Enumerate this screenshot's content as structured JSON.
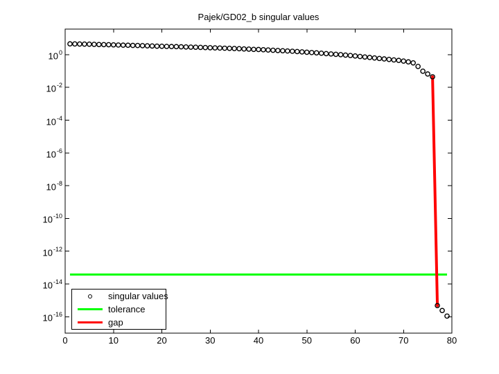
{
  "chart_data": {
    "type": "line",
    "title": "Pajek/GD02_b singular values",
    "xlabel": "",
    "ylabel": "",
    "xlim": [
      0,
      80
    ],
    "ylim": [
      1e-17,
      36.5
    ],
    "y_scale": "log",
    "grid": false,
    "x_ticks": [
      0,
      10,
      20,
      30,
      40,
      50,
      60,
      70,
      80
    ],
    "y_tick_exponents": [
      0,
      -2,
      -4,
      -6,
      -8,
      -10,
      -12,
      -14,
      -16
    ],
    "legend_position": "lower-left",
    "series": [
      {
        "name": "singular values",
        "type": "marker",
        "marker": "circle",
        "color": "#000000",
        "x_start": 1,
        "values": [
          4.57,
          4.52,
          4.47,
          4.42,
          4.37,
          4.27,
          4.17,
          4.12,
          4.07,
          3.98,
          3.89,
          3.8,
          3.76,
          3.67,
          3.63,
          3.55,
          3.47,
          3.39,
          3.31,
          3.27,
          3.2,
          3.13,
          3.09,
          3.02,
          2.95,
          2.88,
          2.85,
          2.79,
          2.72,
          2.66,
          2.6,
          2.54,
          2.48,
          2.43,
          2.37,
          2.32,
          2.24,
          2.19,
          2.11,
          2.07,
          2.0,
          1.93,
          1.86,
          1.8,
          1.74,
          1.68,
          1.62,
          1.55,
          1.48,
          1.41,
          1.35,
          1.29,
          1.23,
          1.16,
          1.11,
          1.05,
          1.0,
          0.944,
          0.891,
          0.832,
          0.776,
          0.724,
          0.676,
          0.631,
          0.589,
          0.55,
          0.513,
          0.479,
          0.447,
          0.407,
          0.363,
          0.316,
          0.191,
          0.0977,
          0.0661,
          0.0447,
          4.8e-16,
          2.4e-16,
          1.1e-16
        ]
      },
      {
        "name": "tolerance",
        "type": "hline",
        "color": "#00ff00",
        "value": 3.8e-14,
        "x_range": [
          1,
          79
        ],
        "width": 3
      },
      {
        "name": "gap",
        "type": "segment",
        "color": "#ff0000",
        "x": [
          76,
          77
        ],
        "values": [
          0.0447,
          4.8e-16
        ],
        "width": 4
      }
    ]
  },
  "legend": {
    "items": [
      {
        "label": "singular values",
        "marker": "circle",
        "color": "#000000"
      },
      {
        "label": "tolerance",
        "marker": "line",
        "color": "#00ff00"
      },
      {
        "label": "gap",
        "marker": "line",
        "color": "#ff0000"
      }
    ]
  },
  "colors": {
    "background": "#ffffff",
    "axis": "#000000",
    "marker": "#000000",
    "tolerance": "#00ff00",
    "gap": "#ff0000"
  }
}
